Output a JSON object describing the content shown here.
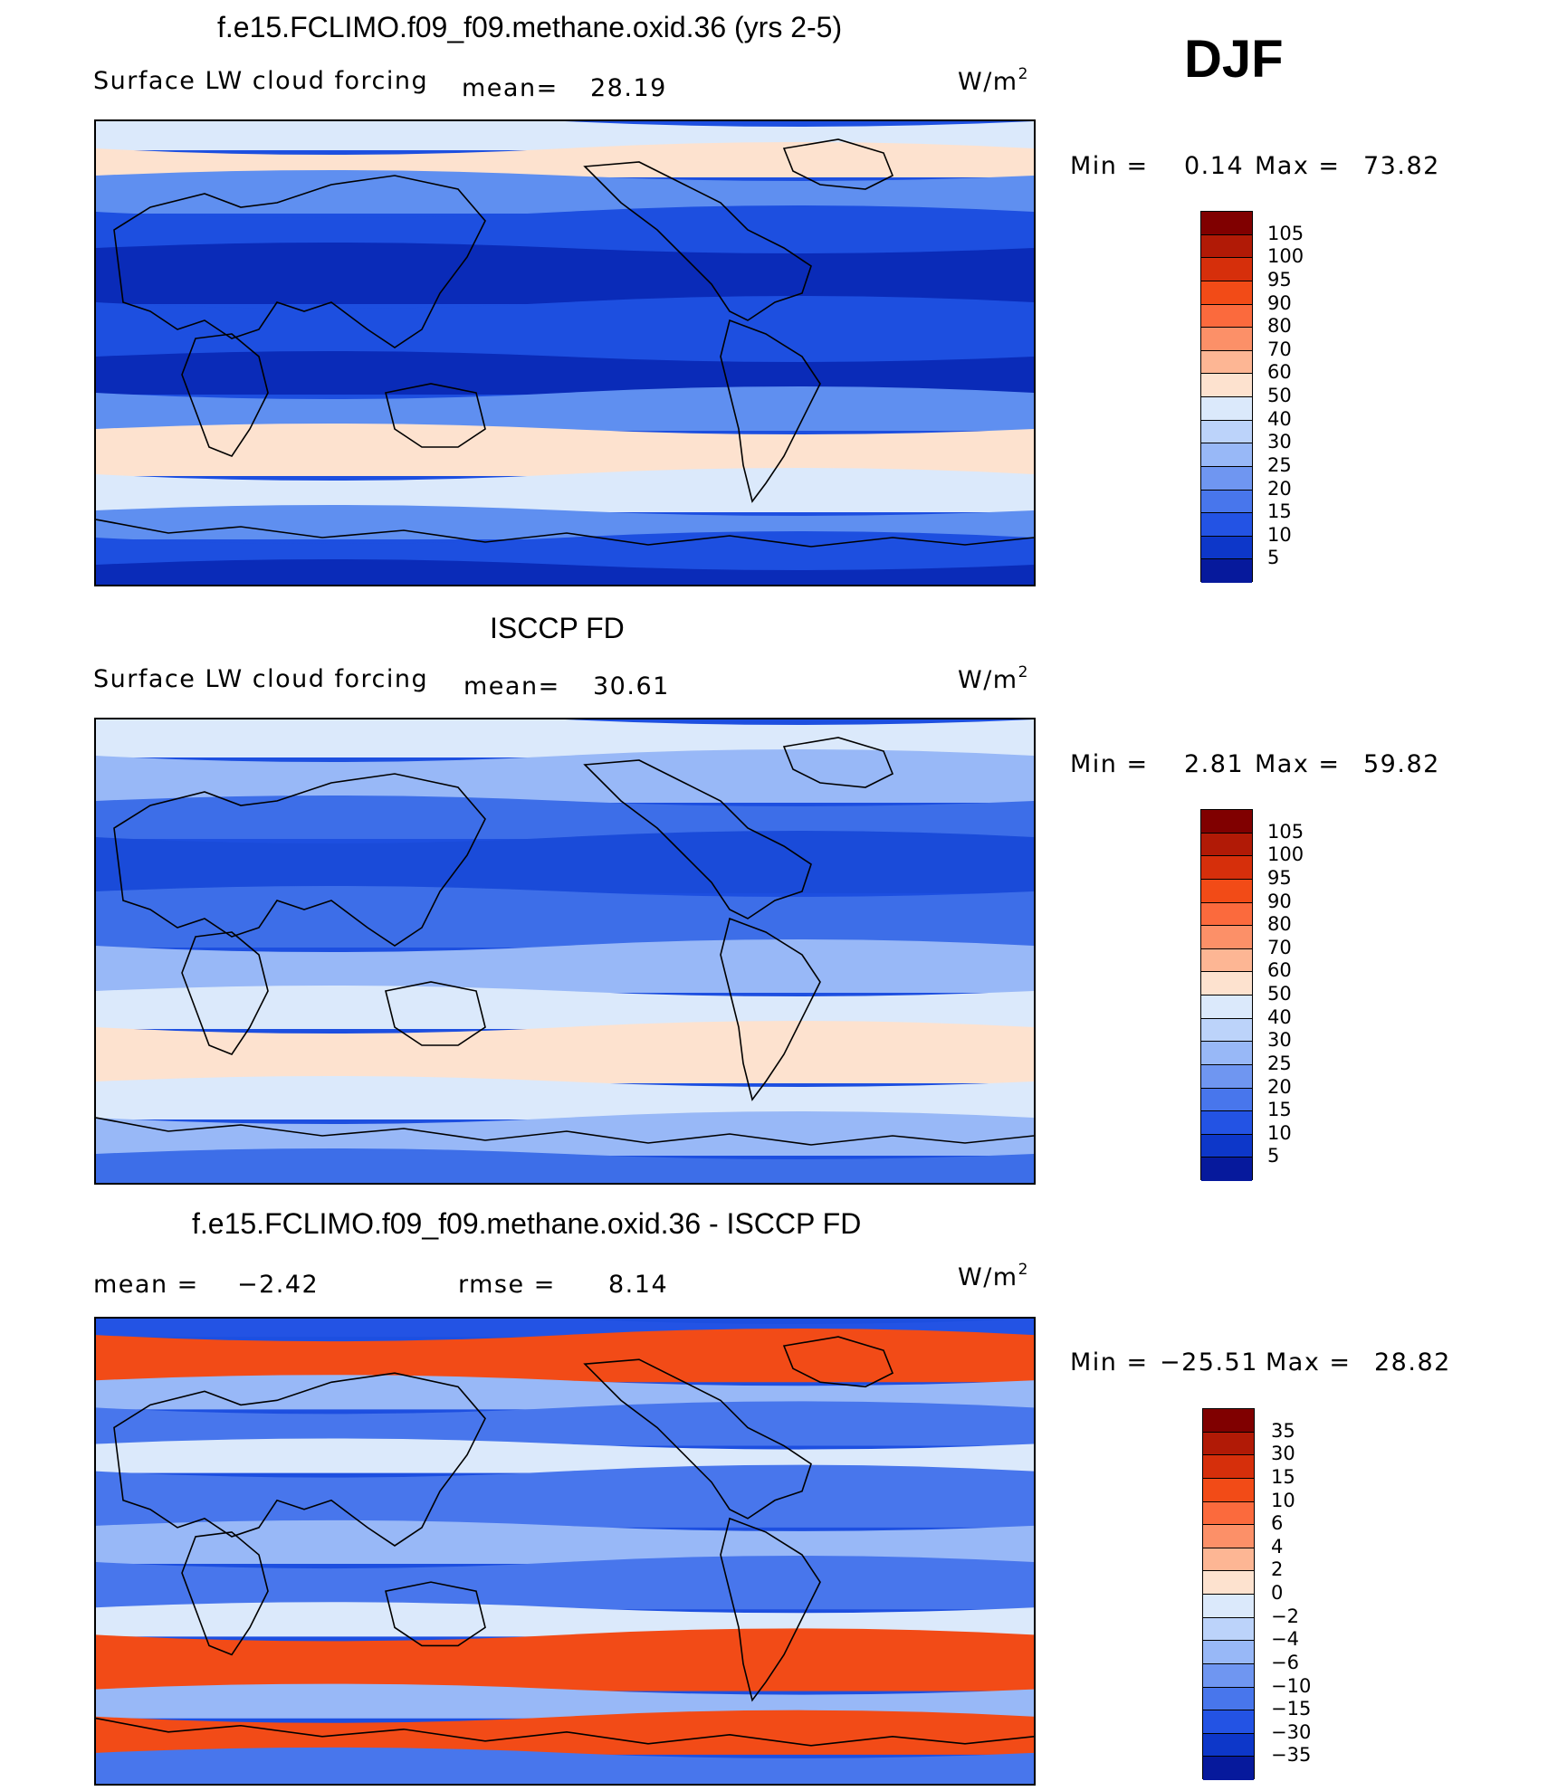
{
  "season": "DJF",
  "panels": [
    {
      "title": "f.e15.FCLIMO.f09_f09.methane.oxid.36 (yrs 2-5)",
      "left_label": "Surface LW cloud forcing",
      "mid_label": "mean=",
      "mid_value": "28.19",
      "units_base": "W/m",
      "units_sup": "2",
      "minmax": {
        "min_label": "Min =",
        "min_value": "0.14",
        "max_label": "Max =",
        "max_value": "73.82"
      },
      "colorbar": {
        "labels": [
          "105",
          "100",
          "95",
          "90",
          "80",
          "70",
          "60",
          "50",
          "40",
          "30",
          "25",
          "20",
          "15",
          "10",
          "5"
        ],
        "colors": [
          "#800000",
          "#b11a06",
          "#d62f0b",
          "#f24b17",
          "#fb6a3d",
          "#fc9068",
          "#fdb694",
          "#fde2cf",
          "#dbe9fb",
          "#bcd3fa",
          "#98b8f7",
          "#6f96f1",
          "#4876ec",
          "#2353e4",
          "#0d37c9",
          "#06199c"
        ]
      },
      "palette": {
        "dark": "#0a2bb8",
        "mid": "#1d4fe0",
        "light": "#5f8ff0",
        "pale": "#dbe9fb",
        "warm": "#fde2cf"
      }
    },
    {
      "title": "ISCCP FD",
      "left_label": "Surface LW cloud forcing",
      "mid_label": "mean=",
      "mid_value": "30.61",
      "units_base": "W/m",
      "units_sup": "2",
      "minmax": {
        "min_label": "Min =",
        "min_value": "2.81",
        "max_label": "Max =",
        "max_value": "59.82"
      },
      "colorbar": {
        "labels": [
          "105",
          "100",
          "95",
          "90",
          "80",
          "70",
          "60",
          "50",
          "40",
          "30",
          "25",
          "20",
          "15",
          "10",
          "5"
        ],
        "colors": [
          "#800000",
          "#b11a06",
          "#d62f0b",
          "#f24b17",
          "#fb6a3d",
          "#fc9068",
          "#fdb694",
          "#fde2cf",
          "#dbe9fb",
          "#bcd3fa",
          "#98b8f7",
          "#6f96f1",
          "#4876ec",
          "#2353e4",
          "#0d37c9",
          "#06199c"
        ]
      },
      "palette": {
        "dark": "#1a4bd9",
        "mid": "#3d6ee8",
        "light": "#98b8f7",
        "pale": "#dbe9fb",
        "warm": "#fde2cf"
      }
    },
    {
      "title": "f.e15.FCLIMO.f09_f09.methane.oxid.36 - ISCCP FD",
      "left_label": "mean =",
      "left_value": "−2.42",
      "mid_label": "rmse =",
      "mid_value": "8.14",
      "units_base": "W/m",
      "units_sup": "2",
      "minmax": {
        "min_label": "Min =",
        "min_value": "−25.51",
        "max_label": "Max =",
        "max_value": "28.82"
      },
      "colorbar": {
        "labels": [
          "35",
          "30",
          "15",
          "10",
          "6",
          "4",
          "2",
          "0",
          "−2",
          "−4",
          "−6",
          "−10",
          "−15",
          "−30",
          "−35"
        ],
        "colors": [
          "#800000",
          "#b11a06",
          "#d62f0b",
          "#f24b17",
          "#fb6a3d",
          "#fc9068",
          "#fdb694",
          "#fde2cf",
          "#dbe9fb",
          "#bcd3fa",
          "#98b8f7",
          "#6f96f1",
          "#4876ec",
          "#2353e4",
          "#0d37c9",
          "#06199c"
        ]
      },
      "palette": {
        "dark": "#2353e4",
        "mid": "#4876ec",
        "light": "#98b8f7",
        "pale": "#dbe9fb",
        "warm": "#f24b17"
      }
    }
  ]
}
